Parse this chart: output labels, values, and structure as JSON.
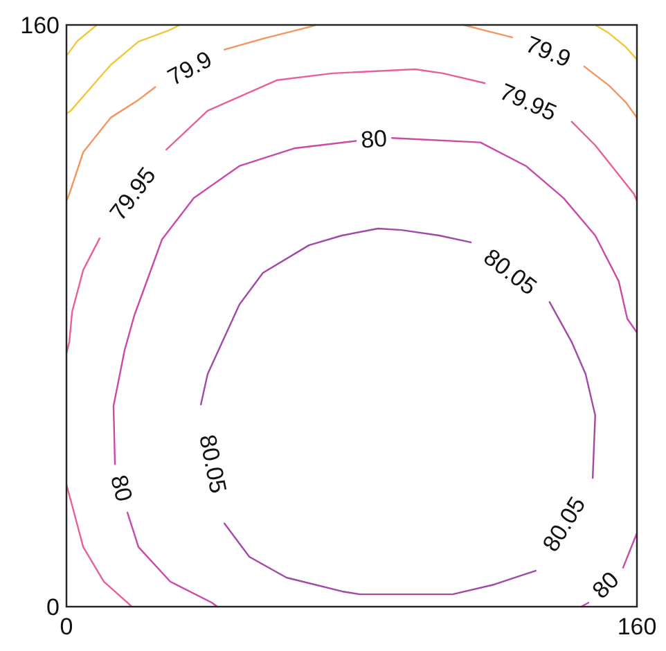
{
  "chart_data": {
    "type": "line",
    "xlim": [
      0,
      160
    ],
    "ylim": [
      0,
      160
    ],
    "xticks": [
      0,
      160
    ],
    "yticks": [
      0,
      160
    ],
    "marker": "none",
    "line_style": "solid",
    "series": [
      {
        "color": "#f2c73a",
        "x": [
          0,
          3,
          8.5
        ],
        "values": [
          151.5,
          155.5,
          160
        ]
      },
      {
        "color": "#f2c73a",
        "x": [
          0,
          1.2,
          12.4,
          20.2,
          28.7,
          31.8
        ],
        "values": [
          135.6,
          136.4,
          149,
          155.4,
          158.5,
          160
        ]
      },
      {
        "color": "#f2c73a",
        "x": [
          148.3,
          152.2,
          156.9,
          160
        ],
        "values": [
          160,
          157.7,
          153.9,
          150.5
        ]
      },
      {
        "color": "#f4955f",
        "x": [
          0,
          0.8,
          4.7,
          12.4,
          20.2,
          24.9
        ],
        "values": [
          111.6,
          113.5,
          125,
          134.5,
          139.4,
          142.9
        ]
      },
      {
        "color": "#f4955f",
        "x": [
          44.3,
          55.1,
          68.7,
          69.9
        ],
        "values": [
          153.2,
          156.2,
          159.6,
          160
        ]
      },
      {
        "color": "#f4955f",
        "x": [
          111.4,
          117.3,
          125
        ],
        "values": [
          160,
          158.5,
          156.6
        ]
      },
      {
        "color": "#f4955f",
        "x": [
          145.2,
          152.2,
          156.9,
          160
        ],
        "values": [
          148.6,
          143.3,
          138.7,
          134.5
        ]
      },
      {
        "color": "#e8609a",
        "x": [
          9.3,
          4.7,
          1.6,
          0.8,
          0
        ],
        "values": [
          101.3,
          92.6,
          81.2,
          72.8,
          69.7
        ]
      },
      {
        "color": "#e8609a",
        "x": [
          0,
          1.6,
          4.7,
          10.5,
          17.1,
          18.3
        ],
        "values": [
          33.5,
          27.8,
          16.4,
          6.9,
          1.1,
          0
        ]
      },
      {
        "color": "#e8609a",
        "x": [
          28,
          39.6,
          59,
          74.6,
          97.8,
          105.6,
          117.3
        ],
        "values": [
          125.7,
          136.4,
          144.8,
          146.7,
          147.8,
          146.7,
          144
        ]
      },
      {
        "color": "#e8609a",
        "x": [
          141.7,
          148.3,
          156.1,
          159.2,
          160
        ],
        "values": [
          133.4,
          126.9,
          117.3,
          113.5,
          111.6
        ]
      },
      {
        "color": "#c94aa8",
        "x": [
          13.6,
          13.2,
          16.3,
          19,
          26.8,
          35.7,
          48.5,
          64.1,
          81.2
        ],
        "values": [
          39.2,
          55.2,
          70.5,
          80,
          101,
          112.4,
          121.2,
          126.1,
          128.1
        ]
      },
      {
        "color": "#c94aa8",
        "x": [
          91.3,
          116.1,
          128.9,
          139.4,
          148.3,
          154.9,
          157.3,
          160
        ],
        "values": [
          128.9,
          127.7,
          121.2,
          112.4,
          102.1,
          89.5,
          79.2,
          75.4
        ]
      },
      {
        "color": "#c94aa8",
        "x": [
          160,
          159.2,
          156.1
        ],
        "values": [
          20.2,
          18.3,
          10.7
        ]
      },
      {
        "color": "#c94aa8",
        "x": [
          146.4,
          144.4
        ],
        "values": [
          1.1,
          0
        ]
      },
      {
        "color": "#c94aa8",
        "x": [
          17.1,
          20.2,
          29.1,
          40.8,
          42.3
        ],
        "values": [
          25.9,
          16.4,
          6.9,
          1.1,
          0
        ]
      },
      {
        "color": "#a249a8",
        "x": [
          37.7,
          39.6,
          48.5,
          55.1,
          68,
          77.3,
          87.4,
          94,
          104.5,
          113.4
        ],
        "values": [
          55.6,
          64,
          83.1,
          91.8,
          99.4,
          102.1,
          104,
          103.6,
          102.1,
          100.2
        ]
      },
      {
        "color": "#a249a8",
        "x": [
          135.5,
          141.7,
          145.6,
          148.3,
          147.6
        ],
        "values": [
          83.8,
          72.8,
          64,
          52.6,
          35.4
        ]
      },
      {
        "color": "#a249a8",
        "x": [
          131.6,
          120,
          108.3,
          82.3,
          77.3,
          61.7,
          51.3,
          44.3
        ],
        "values": [
          9.9,
          6.1,
          3.4,
          3.4,
          4.2,
          8,
          13.7,
          22.9
        ]
      }
    ],
    "annotations": [
      {
        "text": "79.9",
        "x": 24.9,
        "y": 142.9
      },
      {
        "text": "79.95",
        "x": 9.3,
        "y": 101.3
      },
      {
        "text": "79.9",
        "x": 125,
        "y": 156.6
      },
      {
        "text": "79.95",
        "x": 117.3,
        "y": 144
      },
      {
        "text": "80",
        "x": 81.2,
        "y": 128.1
      },
      {
        "text": "80.05",
        "x": 113.4,
        "y": 100.2
      },
      {
        "text": "80.05",
        "x": 37.7,
        "y": 55.6
      },
      {
        "text": "80",
        "x": 13.6,
        "y": 39.2
      },
      {
        "text": "80.05",
        "x": 147.6,
        "y": 35.4
      },
      {
        "text": "80",
        "x": 156.1,
        "y": 10.7
      }
    ]
  }
}
